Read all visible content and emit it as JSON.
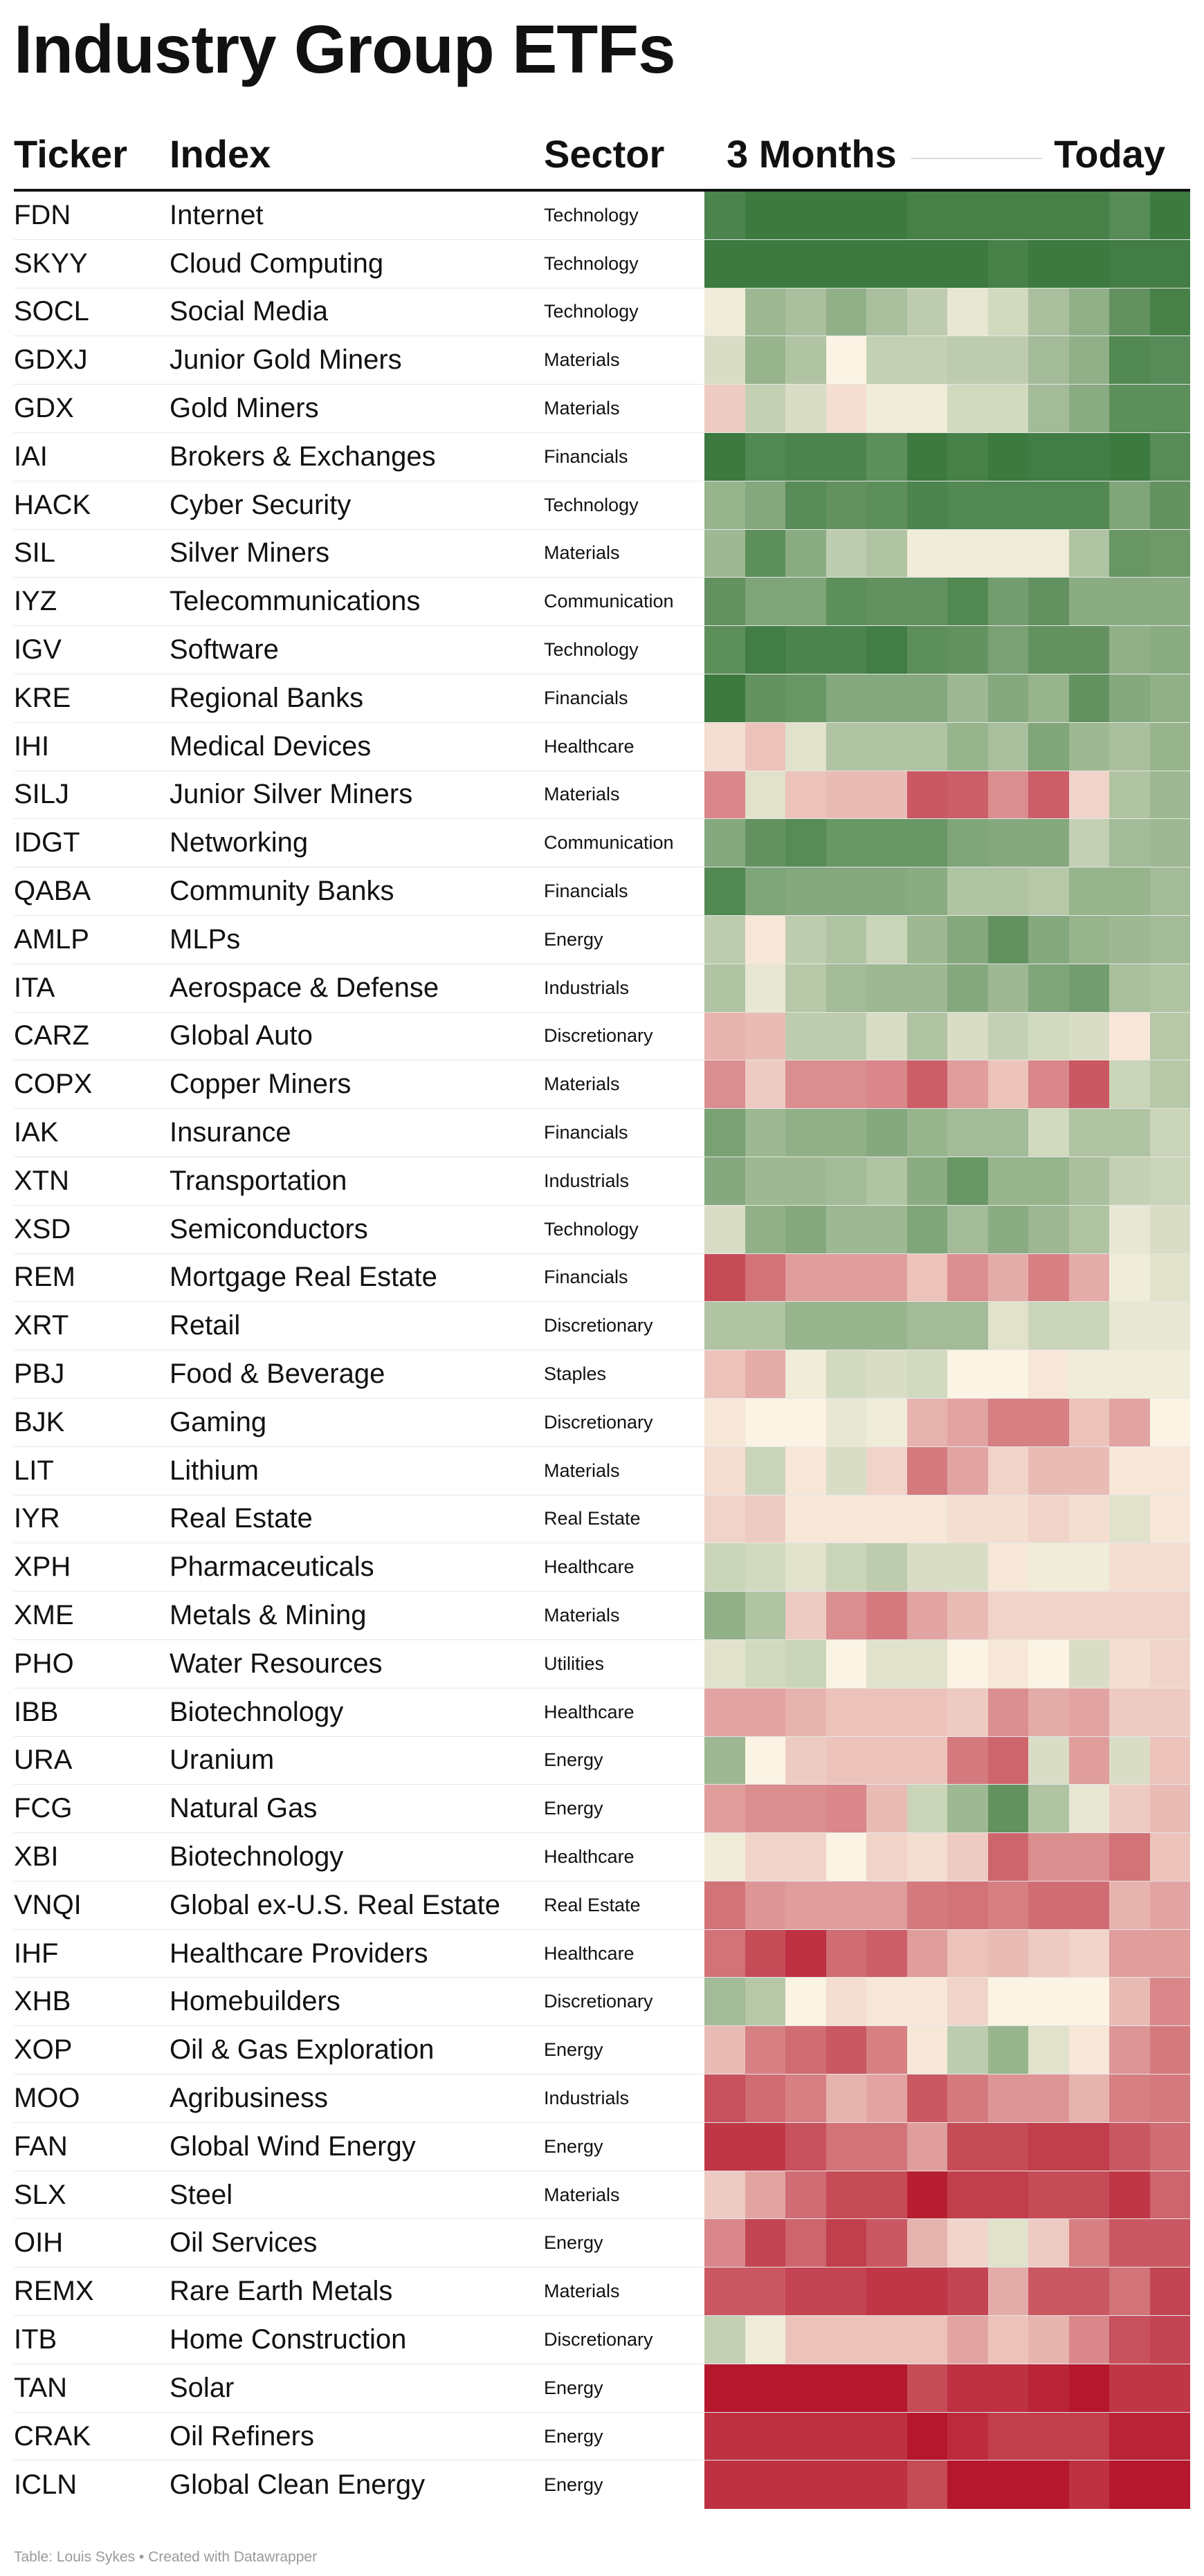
{
  "title": "Industry Group ETFs",
  "columns": {
    "ticker": "Ticker",
    "index": "Index",
    "sector": "Sector",
    "start": "3 Months",
    "end": "Today"
  },
  "footer": "Table: Louis Sykes • Created with Datawrapper",
  "colors": {
    "strong_green": "#3c7a3f",
    "green": "#66bb66",
    "neutral": "#fbf3e3",
    "red": "#e0604a",
    "strong_red": "#b5182d"
  },
  "chart_data": {
    "type": "heatmap",
    "columns": [
      "Ticker",
      "Index",
      "Sector",
      "3 Months",
      "Today"
    ],
    "color_scale": {
      "scale": "score",
      "min": -3,
      "max": 3,
      "low_color": "#b5182d",
      "mid_color": "#fbf3e3",
      "high_color": "#3c7a3f"
    },
    "rows": [
      {
        "ticker": "FDN",
        "index": "Internet",
        "sector": "Technology",
        "values": [
          2.7,
          3,
          3,
          3,
          3,
          2.8,
          2.8,
          2.8,
          2.8,
          2.8,
          2.5,
          3
        ]
      },
      {
        "ticker": "SKYY",
        "index": "Cloud Computing",
        "sector": "Technology",
        "values": [
          3,
          3,
          3,
          3,
          3,
          3,
          3,
          2.8,
          3,
          3,
          2.9,
          2.9
        ]
      },
      {
        "ticker": "SOCL",
        "index": "Social Media",
        "sector": "Technology",
        "values": [
          0.1,
          1.3,
          1.1,
          1.5,
          1.1,
          0.8,
          0.2,
          0.5,
          1.1,
          1.5,
          2.3,
          2.8
        ]
      },
      {
        "ticker": "GDXJ",
        "index": "Junior Gold Miners",
        "sector": "Materials",
        "values": [
          0.4,
          1.4,
          1,
          0,
          0.7,
          0.7,
          0.8,
          0.8,
          1.2,
          1.5,
          2.6,
          2.5
        ]
      },
      {
        "ticker": "GDX",
        "index": "Gold Miners",
        "sector": "Materials",
        "values": [
          -0.4,
          0.7,
          0.4,
          -0.2,
          0.1,
          0.1,
          0.5,
          0.5,
          1.2,
          1.6,
          2.4,
          2.4
        ]
      },
      {
        "ticker": "IAI",
        "index": "Brokers & Exchanges",
        "sector": "Financials",
        "values": [
          3,
          2.6,
          2.7,
          2.7,
          2.4,
          3,
          2.8,
          3,
          2.9,
          2.9,
          3,
          2.5
        ]
      },
      {
        "ticker": "HACK",
        "index": "Cyber Security",
        "sector": "Technology",
        "values": [
          1.4,
          1.7,
          2.5,
          2.3,
          2.4,
          2.7,
          2.6,
          2.6,
          2.6,
          2.6,
          1.8,
          2.3
        ]
      },
      {
        "ticker": "SIL",
        "index": "Silver Miners",
        "sector": "Materials",
        "values": [
          1.3,
          2.4,
          1.6,
          0.8,
          1,
          0.1,
          0.1,
          0.1,
          0.1,
          1,
          2.2,
          2.1
        ]
      },
      {
        "ticker": "IYZ",
        "index": "Telecommunications",
        "sector": "Communication",
        "values": [
          2.3,
          1.8,
          1.8,
          2.4,
          2.3,
          2.3,
          2.6,
          2,
          2.3,
          1.6,
          1.6,
          1.6
        ]
      },
      {
        "ticker": "IGV",
        "index": "Software",
        "sector": "Technology",
        "values": [
          2.4,
          2.9,
          2.7,
          2.7,
          2.9,
          2.4,
          2.3,
          1.9,
          2.3,
          2.3,
          1.5,
          1.6
        ]
      },
      {
        "ticker": "KRE",
        "index": "Regional Banks",
        "sector": "Financials",
        "values": [
          3,
          2.3,
          2.2,
          1.7,
          1.7,
          1.7,
          1.3,
          1.7,
          1.4,
          2.3,
          1.7,
          1.5
        ]
      },
      {
        "ticker": "IHI",
        "index": "Medical Devices",
        "sector": "Healthcare",
        "values": [
          -0.2,
          -0.5,
          0.3,
          1,
          1,
          1,
          1.4,
          1.1,
          1.8,
          1.3,
          1.1,
          1.4
        ]
      },
      {
        "ticker": "SILJ",
        "index": "Junior Silver Miners",
        "sector": "Materials",
        "values": [
          -1.3,
          0.3,
          -0.5,
          -0.6,
          -0.6,
          -2,
          -1.9,
          -1.2,
          -1.9,
          -0.3,
          1,
          1.3
        ]
      },
      {
        "ticker": "IDGT",
        "index": "Networking",
        "sector": "Communication",
        "values": [
          1.7,
          2.3,
          2.5,
          2.2,
          2.2,
          2.2,
          1.8,
          1.7,
          1.7,
          0.7,
          1.2,
          1.3
        ]
      },
      {
        "ticker": "QABA",
        "index": "Community Banks",
        "sector": "Financials",
        "values": [
          2.6,
          1.8,
          1.7,
          1.7,
          1.7,
          1.6,
          1,
          1,
          0.9,
          1.4,
          1.4,
          1.2
        ]
      },
      {
        "ticker": "AMLP",
        "index": "MLPs",
        "sector": "Energy",
        "values": [
          0.8,
          -0.1,
          0.8,
          1,
          0.6,
          1.3,
          1.7,
          2.3,
          1.7,
          1.4,
          1.3,
          1.2
        ]
      },
      {
        "ticker": "ITA",
        "index": "Aerospace & Defense",
        "sector": "Industrials",
        "values": [
          1,
          0.2,
          0.9,
          1.2,
          1.3,
          1.3,
          1.7,
          1.3,
          1.8,
          2,
          1.1,
          1
        ]
      },
      {
        "ticker": "CARZ",
        "index": "Global Auto",
        "sector": "Discretionary",
        "values": [
          -0.7,
          -0.6,
          0.8,
          0.8,
          0.4,
          1,
          0.4,
          0.7,
          0.5,
          0.4,
          -0.1,
          0.9
        ]
      },
      {
        "ticker": "COPX",
        "index": "Copper Miners",
        "sector": "Materials",
        "values": [
          -1.2,
          -0.4,
          -1.2,
          -1.2,
          -1.3,
          -1.9,
          -1,
          -0.5,
          -1.3,
          -2,
          0.6,
          0.9
        ]
      },
      {
        "ticker": "IAK",
        "index": "Insurance",
        "sector": "Financials",
        "values": [
          1.9,
          1.3,
          1.5,
          1.5,
          1.7,
          1.4,
          1.2,
          1.2,
          0.5,
          1,
          1,
          0.6
        ]
      },
      {
        "ticker": "XTN",
        "index": "Transportation",
        "sector": "Industrials",
        "values": [
          1.7,
          1.3,
          1.3,
          1.2,
          1,
          1.6,
          2.2,
          1.4,
          1.4,
          1.1,
          0.7,
          0.6
        ]
      },
      {
        "ticker": "XSD",
        "index": "Semiconductors",
        "sector": "Technology",
        "values": [
          0.4,
          1.5,
          1.7,
          1.3,
          1.3,
          1.8,
          1.2,
          1.6,
          1.3,
          1,
          0.2,
          0.4
        ]
      },
      {
        "ticker": "REM",
        "index": "Mortgage Real Estate",
        "sector": "Financials",
        "values": [
          -2.2,
          -1.6,
          -1,
          -1,
          -1,
          -0.5,
          -1.2,
          -0.8,
          -1.4,
          -0.8,
          0.1,
          0.3
        ]
      },
      {
        "ticker": "XRT",
        "index": "Retail",
        "sector": "Discretionary",
        "values": [
          1,
          1,
          1.4,
          1.4,
          1.4,
          1.2,
          1.2,
          0.3,
          0.6,
          0.6,
          0.2,
          0.2
        ]
      },
      {
        "ticker": "PBJ",
        "index": "Food & Beverage",
        "sector": "Staples",
        "values": [
          -0.5,
          -0.8,
          0.1,
          0.5,
          0.4,
          0.5,
          0,
          0,
          -0.1,
          0.1,
          0.1,
          0.1
        ]
      },
      {
        "ticker": "BJK",
        "index": "Gaming",
        "sector": "Discretionary",
        "values": [
          -0.1,
          0,
          0,
          0.2,
          0.1,
          -0.7,
          -0.9,
          -1.4,
          -1.4,
          -0.5,
          -0.9,
          0
        ]
      },
      {
        "ticker": "LIT",
        "index": "Lithium",
        "sector": "Materials",
        "values": [
          -0.2,
          0.6,
          -0.1,
          0.4,
          -0.3,
          -1.5,
          -0.9,
          -0.3,
          -0.6,
          -0.6,
          -0.1,
          -0.1
        ]
      },
      {
        "ticker": "IYR",
        "index": "Real Estate",
        "sector": "Real Estate",
        "values": [
          -0.3,
          -0.4,
          -0.1,
          -0.1,
          -0.1,
          -0.1,
          -0.2,
          -0.2,
          -0.3,
          -0.2,
          0.3,
          -0.1
        ]
      },
      {
        "ticker": "XPH",
        "index": "Pharmaceuticals",
        "sector": "Healthcare",
        "values": [
          0.6,
          0.5,
          0.3,
          0.6,
          0.8,
          0.4,
          0.4,
          -0.1,
          0.1,
          0.1,
          -0.2,
          -0.2
        ]
      },
      {
        "ticker": "XME",
        "index": "Metals & Mining",
        "sector": "Materials",
        "values": [
          1.5,
          1,
          -0.4,
          -1.2,
          -1.5,
          -0.9,
          -0.6,
          -0.3,
          -0.3,
          -0.3,
          -0.3,
          -0.3
        ]
      },
      {
        "ticker": "PHO",
        "index": "Water Resources",
        "sector": "Utilities",
        "values": [
          0.3,
          0.5,
          0.6,
          0,
          0.3,
          0.3,
          0,
          -0.1,
          0,
          0.4,
          -0.2,
          -0.3
        ]
      },
      {
        "ticker": "IBB",
        "index": "Biotechnology",
        "sector": "Healthcare",
        "values": [
          -0.9,
          -0.9,
          -0.7,
          -0.5,
          -0.5,
          -0.5,
          -0.4,
          -1.2,
          -0.8,
          -0.9,
          -0.4,
          -0.4
        ]
      },
      {
        "ticker": "URA",
        "index": "Uranium",
        "sector": "Energy",
        "values": [
          1.3,
          0,
          -0.4,
          -0.5,
          -0.5,
          -0.5,
          -1.5,
          -1.8,
          0.4,
          -1,
          0.4,
          -0.5
        ]
      },
      {
        "ticker": "FCG",
        "index": "Natural Gas",
        "sector": "Energy",
        "values": [
          -1,
          -1.2,
          -1.2,
          -1.3,
          -0.6,
          0.6,
          1.3,
          2.3,
          1,
          0.2,
          -0.4,
          -0.6
        ]
      },
      {
        "ticker": "XBI",
        "index": "Biotechnology",
        "sector": "Healthcare",
        "values": [
          0.1,
          -0.3,
          -0.3,
          0,
          -0.3,
          -0.2,
          -0.4,
          -1.8,
          -1.2,
          -1.2,
          -1.6,
          -0.5
        ]
      },
      {
        "ticker": "VNQI",
        "index": "Global ex-U.S. Real Estate",
        "sector": "Real Estate",
        "values": [
          -1.6,
          -1.1,
          -1,
          -1,
          -1,
          -1.5,
          -1.6,
          -1.4,
          -1.7,
          -1.7,
          -0.7,
          -0.9
        ]
      },
      {
        "ticker": "IHF",
        "index": "Healthcare Providers",
        "sector": "Healthcare",
        "values": [
          -1.6,
          -2.2,
          -2.6,
          -1.7,
          -1.9,
          -1,
          -0.5,
          -0.6,
          -0.4,
          -0.3,
          -1,
          -1
        ]
      },
      {
        "ticker": "XHB",
        "index": "Homebuilders",
        "sector": "Discretionary",
        "values": [
          1.2,
          0.9,
          0,
          -0.2,
          -0.1,
          -0.1,
          -0.3,
          0,
          0,
          0,
          -0.6,
          -1.3
        ]
      },
      {
        "ticker": "XOP",
        "index": "Oil & Gas Exploration",
        "sector": "Energy",
        "values": [
          -0.6,
          -1.4,
          -1.7,
          -2,
          -1.4,
          -0.1,
          0.8,
          1.4,
          0.3,
          -0.1,
          -1.1,
          -1.5
        ]
      },
      {
        "ticker": "MOO",
        "index": "Agribusiness",
        "sector": "Industrials",
        "values": [
          -2.1,
          -1.7,
          -1.4,
          -0.7,
          -0.9,
          -2,
          -1.5,
          -1.1,
          -1.1,
          -0.7,
          -1.4,
          -1.5
        ]
      },
      {
        "ticker": "FAN",
        "index": "Global Wind Energy",
        "sector": "Energy",
        "values": [
          -2.5,
          -2.5,
          -2.1,
          -1.6,
          -1.6,
          -1,
          -2.2,
          -2.2,
          -2.4,
          -2.4,
          -2,
          -1.7
        ]
      },
      {
        "ticker": "SLX",
        "index": "Steel",
        "sector": "Materials",
        "values": [
          -0.4,
          -0.9,
          -1.7,
          -2.2,
          -2.2,
          -2.9,
          -2.4,
          -2.4,
          -2.2,
          -2.2,
          -2.5,
          -1.8
        ]
      },
      {
        "ticker": "OIH",
        "index": "Oil Services",
        "sector": "Energy",
        "values": [
          -1.3,
          -2.3,
          -1.8,
          -2.4,
          -2,
          -0.7,
          -0.3,
          0.3,
          -0.4,
          -1.4,
          -2,
          -2
        ]
      },
      {
        "ticker": "REMX",
        "index": "Rare Earth Metals",
        "sector": "Materials",
        "values": [
          -2,
          -2,
          -2.3,
          -2.3,
          -2.5,
          -2.5,
          -2.3,
          -0.8,
          -2,
          -2,
          -1.6,
          -2.3
        ]
      },
      {
        "ticker": "ITB",
        "index": "Home Construction",
        "sector": "Discretionary",
        "values": [
          0.7,
          0.1,
          -0.5,
          -0.5,
          -0.5,
          -0.5,
          -0.9,
          -0.5,
          -0.7,
          -1.3,
          -2.1,
          -2.3
        ]
      },
      {
        "ticker": "TAN",
        "index": "Solar",
        "sector": "Energy",
        "values": [
          -3,
          -3,
          -3,
          -3,
          -3,
          -2.2,
          -2.6,
          -2.6,
          -2.8,
          -3,
          -2.5,
          -2.5
        ]
      },
      {
        "ticker": "CRAK",
        "index": "Oil Refiners",
        "sector": "Energy",
        "values": [
          -2.6,
          -2.6,
          -2.6,
          -2.6,
          -2.6,
          -3,
          -2.7,
          -2.4,
          -2.4,
          -2.4,
          -2.8,
          -2.8
        ]
      },
      {
        "ticker": "ICLN",
        "index": "Global Clean Energy",
        "sector": "Energy",
        "values": [
          -2.6,
          -2.6,
          -2.6,
          -2.6,
          -2.6,
          -2.2,
          -3,
          -3,
          -3,
          -2.6,
          -3,
          -3
        ]
      }
    ]
  }
}
